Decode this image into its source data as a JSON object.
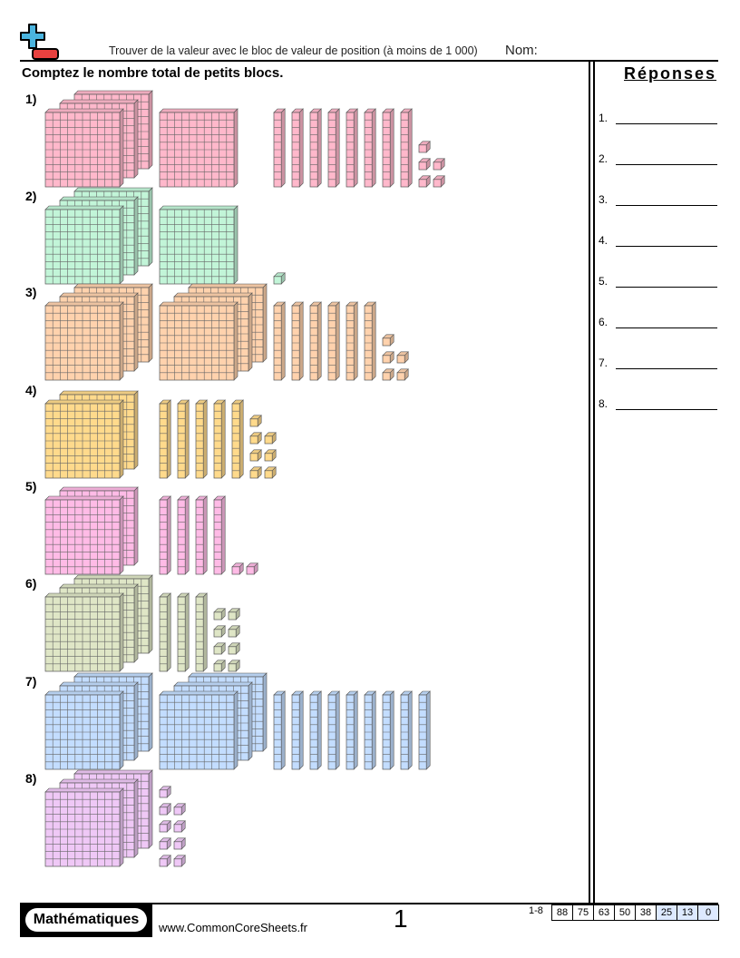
{
  "header": {
    "title": "Trouver de la valeur avec le bloc de valeur de position (à moins de 1 000)",
    "name_label": "Nom:"
  },
  "instructions": "Comptez le nombre total de petits blocs.",
  "answers_title": "Réponses",
  "problems": [
    {
      "label": "1)",
      "hundreds": 4,
      "tens": 8,
      "ones": 5,
      "color": "#ffb8cb"
    },
    {
      "label": "2)",
      "hundreds": 4,
      "tens": 0,
      "ones": 1,
      "color": "#c2f5d8"
    },
    {
      "label": "3)",
      "hundreds": 6,
      "tens": 6,
      "ones": 5,
      "color": "#ffd2ad"
    },
    {
      "label": "4)",
      "hundreds": 2,
      "tens": 5,
      "ones": 7,
      "color": "#ffda8c"
    },
    {
      "label": "5)",
      "hundreds": 2,
      "tens": 4,
      "ones": 2,
      "color": "#ffbbe6"
    },
    {
      "label": "6)",
      "hundreds": 3,
      "tens": 3,
      "ones": 8,
      "color": "#dfe6c6"
    },
    {
      "label": "7)",
      "hundreds": 6,
      "tens": 9,
      "ones": 0,
      "color": "#c3ddff"
    },
    {
      "label": "8)",
      "hundreds": 3,
      "tens": 0,
      "ones": 9,
      "color": "#efc8f6"
    }
  ],
  "answer_labels": [
    "1.",
    "2.",
    "3.",
    "4.",
    "5.",
    "6.",
    "7.",
    "8."
  ],
  "footer": {
    "subject": "Mathématiques",
    "url": "www.CommonCoreSheets.fr",
    "page": "1",
    "range": "1-8",
    "scores": [
      "88",
      "75",
      "63",
      "50",
      "38",
      "25",
      "13",
      "0"
    ]
  }
}
